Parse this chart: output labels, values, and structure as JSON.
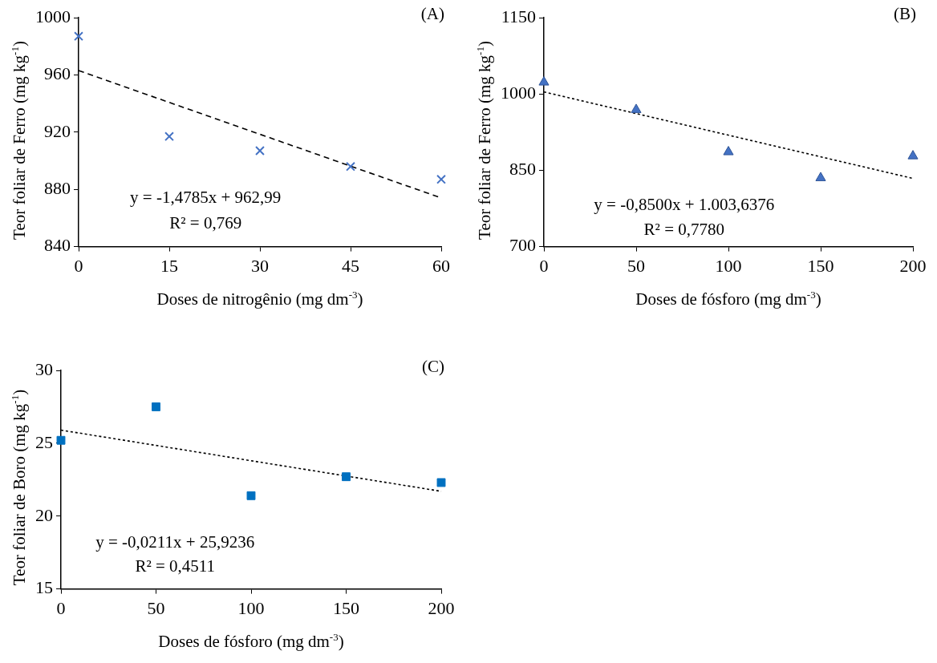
{
  "chart_data": [
    {
      "type": "scatter",
      "title": "(A)",
      "xlabel": "Doses de nitrogênio  (mg dm$^{-3}$)",
      "ylabel": "Teor foliar de Ferro (mg  kg$^{-1}$)",
      "x": [
        0,
        15,
        30,
        45,
        60
      ],
      "marker": "cross",
      "legend": false,
      "series": [
        {
          "type": "scatter",
          "color": "#4472c4",
          "values": [
            987,
            917,
            907,
            896,
            887
          ]
        },
        {
          "type": "line",
          "color": "#000000",
          "x": [
            0,
            60
          ],
          "values": [
            963,
            874
          ],
          "line_style": "dashed",
          "marker": "none"
        }
      ],
      "xlim": [
        0,
        60
      ],
      "xticks": [
        0,
        15,
        30,
        45,
        60
      ],
      "ylim": [
        840,
        1000
      ],
      "yticks": [
        840,
        880,
        920,
        960,
        1000
      ],
      "annotations": [
        "y = -1,4785x + 962,99",
        "R² = 0,769"
      ]
    },
    {
      "type": "scatter",
      "title": "(B)",
      "xlabel": "Doses de fósforo (mg dm$^{-3}$)",
      "ylabel": "Teor foliar de Ferro (mg kg$^{-1}$)",
      "x": [
        0,
        50,
        100,
        150,
        200
      ],
      "marker": "triangle",
      "legend": false,
      "series": [
        {
          "type": "scatter",
          "color": "#4472c4",
          "values": [
            1023,
            969,
            886,
            835,
            878
          ]
        },
        {
          "type": "line",
          "color": "#000000",
          "x": [
            0,
            200
          ],
          "values": [
            1004,
            834
          ],
          "line_style": "dotted",
          "marker": "none"
        }
      ],
      "xlim": [
        0,
        200
      ],
      "xticks": [
        0,
        50,
        100,
        150,
        200
      ],
      "ylim": [
        700,
        1150
      ],
      "yticks": [
        700,
        850,
        1000,
        1150
      ],
      "annotations": [
        "y = -0,8500x + 1.003,6376",
        "R² = 0,7780"
      ]
    },
    {
      "type": "scatter",
      "title": "(C)",
      "xlabel": "Doses de fósforo (mg dm$^{-3}$)",
      "ylabel": "Teor foliar de Boro (mg kg$^{-1}$)",
      "x": [
        0,
        50,
        100,
        150,
        200
      ],
      "marker": "square",
      "legend": false,
      "series": [
        {
          "type": "scatter",
          "color": "#0070c0",
          "values": [
            25.2,
            27.5,
            21.4,
            22.7,
            22.3
          ]
        },
        {
          "type": "line",
          "color": "#000000",
          "x": [
            0,
            200
          ],
          "values": [
            25.9,
            21.7
          ],
          "line_style": "dotted",
          "marker": "none"
        }
      ],
      "xlim": [
        0,
        200
      ],
      "xticks": [
        0,
        50,
        100,
        150,
        200
      ],
      "ylim": [
        15,
        30
      ],
      "yticks": [
        15,
        20,
        25,
        30
      ],
      "annotations": [
        "y = -0,0211x + 25,9236",
        "R² = 0,4511"
      ]
    }
  ]
}
